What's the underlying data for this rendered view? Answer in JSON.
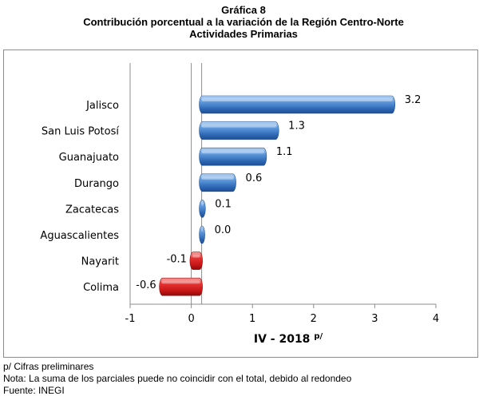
{
  "header": {
    "line1": "Gráfica 8",
    "line2": "Contribución porcentual a la variación de la Región Centro-Norte",
    "line3": "Actividades Primarias"
  },
  "chart_data": {
    "type": "bar",
    "orientation": "horizontal",
    "categories": [
      "Jalisco",
      "San Luis Potosí",
      "Guanajuato",
      "Durango",
      "Zacatecas",
      "Aguascalientes",
      "Nayarit",
      "Colima"
    ],
    "values": [
      3.2,
      1.3,
      1.1,
      0.6,
      0.1,
      0.0,
      -0.1,
      -0.6
    ],
    "value_labels": [
      "3.2",
      "1.3",
      "1.1",
      "0.6",
      "0.1",
      "0.0",
      "-0.1",
      "-0.6"
    ],
    "xlabel": "IV - 2018",
    "xlabel_superscript": "p/",
    "xlim": [
      -1,
      4
    ],
    "xticks": [
      -1,
      0,
      1,
      2,
      3,
      4
    ],
    "xtick_labels": [
      "-1",
      "0",
      "1",
      "2",
      "3",
      "4"
    ],
    "positive_color": "#4a86cc",
    "negative_color": "#d81e1e",
    "legend": "none",
    "grid": false
  },
  "footer": {
    "note1": "p/ Cifras preliminares",
    "note2": "Nota: La suma de los parciales puede no coincidir con el total, debido al redondeo",
    "note3": "Fuente: INEGI"
  }
}
